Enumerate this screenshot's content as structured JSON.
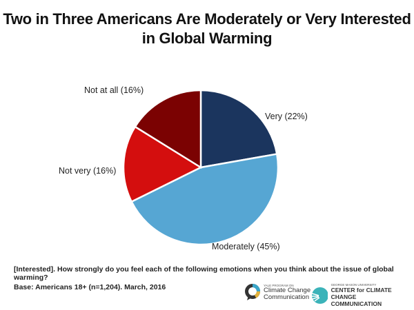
{
  "chart_data": {
    "type": "pie",
    "title": "Two in Three Americans Are Moderately or Very Interested in Global Warming",
    "slices": [
      {
        "label": "Very (22%)",
        "value": 22,
        "color": "#1b355e"
      },
      {
        "label": "Moderately (45%)",
        "value": 45,
        "color": "#56a6d3"
      },
      {
        "label": "Not very (16%)",
        "value": 16,
        "color": "#d40e0e"
      },
      {
        "label": "Not at all (16%)",
        "value": 16,
        "color": "#7b0202"
      }
    ],
    "start": "top",
    "direction": "clockwise"
  },
  "footer": {
    "question": "[Interested]. How strongly do you feel each of the following emotions when you think about the issue of global warming?",
    "base": "Base: Americans 18+ (n=1,204). March, 2016"
  },
  "logos": {
    "yale_small": "YALE PROGRAM ON",
    "yale_line1": "Climate Change",
    "yale_line2": "Communication",
    "gmu_small": "GEORGE MASON UNIVERSITY",
    "gmu_line1": "CENTER for CLIMATE CHANGE",
    "gmu_line2": "COMMUNICATION"
  }
}
